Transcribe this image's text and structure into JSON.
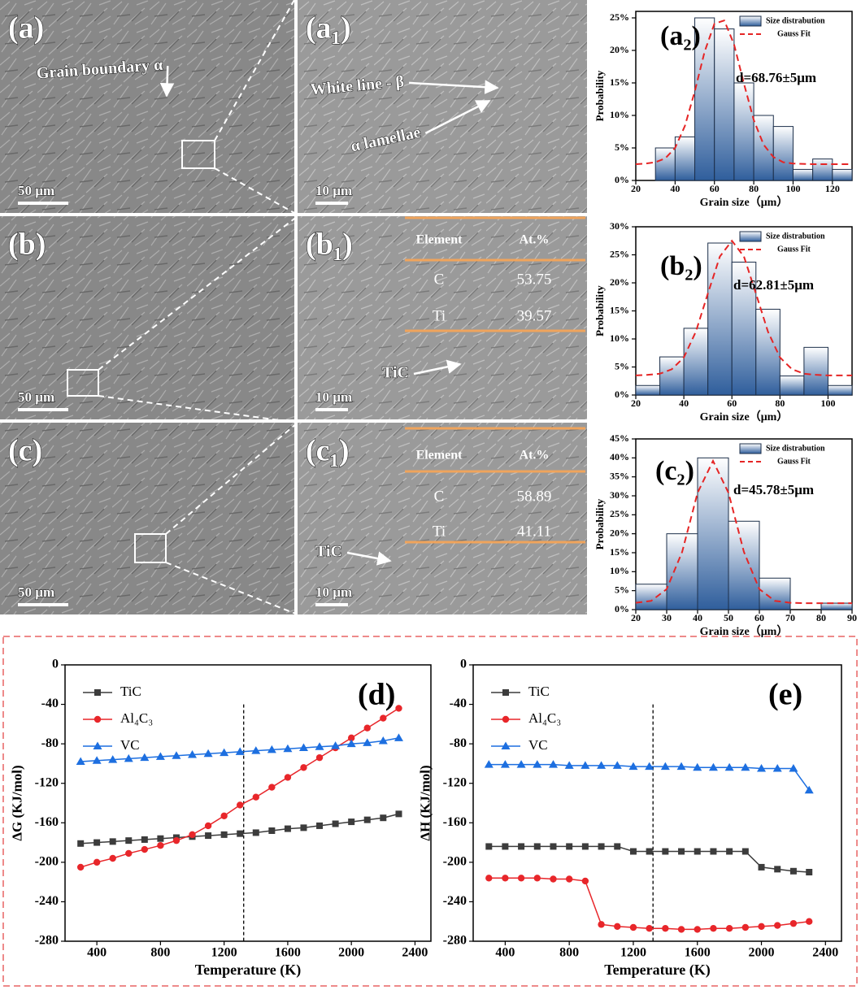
{
  "micrographs": [
    {
      "label": "(a)",
      "scale": "50 µm",
      "annotations": [
        "Grain boundary α"
      ]
    },
    {
      "label": "(a₁)",
      "scale": "10 µm",
      "annotations": [
        "White line - β",
        "α lamellae"
      ]
    },
    {
      "label": "(b)",
      "scale": "50 µm"
    },
    {
      "label": "(b₁)",
      "scale": "10 µm",
      "annotations": [
        "TiC"
      ],
      "table": {
        "header": [
          "Element",
          "At.%"
        ],
        "rows": [
          [
            "C",
            "53.75"
          ],
          [
            "Ti",
            "39.57"
          ]
        ]
      }
    },
    {
      "label": "(c)",
      "scale": "50 µm"
    },
    {
      "label": "(c₁)",
      "scale": "10 µm",
      "annotations": [
        "TiC"
      ],
      "table": {
        "header": [
          "Element",
          "At.%"
        ],
        "rows": [
          [
            "C",
            "58.89"
          ],
          [
            "Ti",
            "41.11"
          ]
        ]
      }
    }
  ],
  "chart_data": [
    {
      "type": "histogram",
      "panel_label": "(a₂)",
      "annotation": "d=68.76±5μm",
      "xlabel": "Grain size（μm）",
      "ylabel": "Probability",
      "bins": [
        30,
        40,
        50,
        60,
        70,
        80,
        90,
        100,
        110,
        120,
        130
      ],
      "series": [
        {
          "name": "Size distrabution",
          "color": "#2f5e9c",
          "values": [
            5,
            6.7,
            25,
            23.3,
            15,
            10,
            8.3,
            1.7,
            3.3,
            1.7
          ]
        },
        {
          "name": "Gauss Fit",
          "color": "#e52525",
          "x": [
            20,
            25,
            30,
            35,
            40,
            45,
            50,
            55,
            60,
            65,
            70,
            75,
            80,
            85,
            90,
            95,
            100,
            110,
            120,
            130
          ],
          "values": [
            2.5,
            2.6,
            2.8,
            3.4,
            5,
            8.4,
            13.7,
            19.8,
            24.1,
            24.6,
            20.9,
            14.9,
            9.3,
            5.5,
            3.6,
            2.8,
            2.6,
            2.5,
            2.5,
            2.5
          ]
        }
      ],
      "xlim": [
        20,
        130
      ],
      "xticks": [
        20,
        40,
        60,
        80,
        100,
        120
      ],
      "ylim": [
        0,
        26
      ],
      "yticks": [
        {
          "value": 0,
          "label": "0%"
        },
        {
          "value": 5,
          "label": "5%"
        },
        {
          "value": 10,
          "label": "10%"
        },
        {
          "value": 15,
          "label": "15%"
        },
        {
          "value": 20,
          "label": "20%"
        },
        {
          "value": 25,
          "label": "25%"
        }
      ]
    },
    {
      "type": "histogram",
      "panel_label": "(b₂)",
      "annotation": "d=62.81±5μm",
      "xlabel": "Grain size（μm）",
      "ylabel": "Probability",
      "bins": [
        20,
        30,
        40,
        50,
        60,
        70,
        80,
        90,
        100,
        110
      ],
      "series": [
        {
          "name": "Size distrabution",
          "color": "#2f5e9c",
          "values": [
            1.7,
            6.8,
            11.9,
            27.1,
            23.7,
            15.3,
            3.4,
            8.5,
            1.7
          ]
        },
        {
          "name": "Gauss Fit",
          "color": "#e52525",
          "x": [
            20,
            25,
            30,
            35,
            40,
            45,
            50,
            55,
            60,
            65,
            70,
            75,
            80,
            85,
            90,
            95,
            100,
            105,
            110
          ],
          "values": [
            3.5,
            3.6,
            3.8,
            4.6,
            6.7,
            11.3,
            18.1,
            24.7,
            27.5,
            24.7,
            18.1,
            11.3,
            6.7,
            4.6,
            3.8,
            3.6,
            3.5,
            3.5,
            3.5
          ]
        }
      ],
      "xlim": [
        20,
        110
      ],
      "xticks": [
        20,
        40,
        60,
        80,
        100
      ],
      "ylim": [
        0,
        30
      ],
      "yticks": [
        {
          "value": 0,
          "label": "0%"
        },
        {
          "value": 5,
          "label": "5%"
        },
        {
          "value": 10,
          "label": "10%"
        },
        {
          "value": 15,
          "label": "15%"
        },
        {
          "value": 20,
          "label": "20%"
        },
        {
          "value": 25,
          "label": "25%"
        },
        {
          "value": 30,
          "label": "30%"
        }
      ]
    },
    {
      "type": "histogram",
      "panel_label": "(c₂)",
      "annotation": "d=45.78±5μm",
      "xlabel": "Grain size（μm）",
      "ylabel": "Probability",
      "bins": [
        20,
        30,
        40,
        50,
        60,
        70,
        80,
        90
      ],
      "series": [
        {
          "name": "Size distrabution",
          "color": "#2f5e9c",
          "values": [
            6.7,
            20,
            40,
            23.3,
            8.3,
            0,
            1.7
          ]
        },
        {
          "name": "Gauss Fit",
          "color": "#e52525",
          "x": [
            20,
            25,
            30,
            35,
            40,
            45,
            50,
            55,
            60,
            65,
            70,
            75,
            80,
            85,
            90
          ],
          "values": [
            1.8,
            2.3,
            5.4,
            15.2,
            30.8,
            39.2,
            30.8,
            15.2,
            5.4,
            2.3,
            1.8,
            1.7,
            1.7,
            1.7,
            1.7
          ]
        }
      ],
      "xlim": [
        20,
        90
      ],
      "xticks": [
        20,
        30,
        40,
        50,
        60,
        70,
        80,
        90
      ],
      "ylim": [
        0,
        45
      ],
      "yticks": [
        {
          "value": 0,
          "label": "0%"
        },
        {
          "value": 5,
          "label": "5%"
        },
        {
          "value": 10,
          "label": "10%"
        },
        {
          "value": 15,
          "label": "15%"
        },
        {
          "value": 20,
          "label": "20%"
        },
        {
          "value": 25,
          "label": "25%"
        },
        {
          "value": 30,
          "label": "30%"
        },
        {
          "value": 35,
          "label": "35%"
        },
        {
          "value": 40,
          "label": "40%"
        },
        {
          "value": 45,
          "label": "45%"
        }
      ]
    },
    {
      "type": "line",
      "panel_label": "(d)",
      "xlabel": "Temperature (K)",
      "ylabel": "ΔG (KJ/mol)",
      "vline": 1323,
      "x": [
        298,
        400,
        500,
        600,
        700,
        800,
        900,
        1000,
        1100,
        1200,
        1300,
        1400,
        1500,
        1600,
        1700,
        1800,
        1900,
        2000,
        2100,
        2200,
        2298
      ],
      "series": [
        {
          "name": "TiC",
          "color": "#3c3c3c",
          "marker": "square",
          "values": [
            -181,
            -180,
            -179,
            -178,
            -177,
            -176,
            -175,
            -174,
            -173,
            -172,
            -171,
            -170,
            -168,
            -166,
            -165,
            -163,
            -161,
            -159,
            -157,
            -155,
            -151
          ]
        },
        {
          "name": "Al₄C₃",
          "color": "#e8262a",
          "marker": "circle",
          "values": [
            -205,
            -200,
            -196,
            -191,
            -187,
            -183,
            -178,
            -172,
            -163,
            -153,
            -142,
            -134,
            -124,
            -114,
            -104,
            -94,
            -84,
            -74,
            -64,
            -54,
            -44
          ]
        },
        {
          "name": "VC",
          "color": "#1d6fe0",
          "marker": "triangle",
          "values": [
            -98,
            -97,
            -96,
            -95,
            -94,
            -93,
            -92,
            -91,
            -90,
            -89,
            -88,
            -87,
            -86,
            -85,
            -84,
            -83,
            -82,
            -80,
            -79,
            -77,
            -74
          ]
        }
      ],
      "xlim": [
        200,
        2500
      ],
      "xticks": [
        400,
        800,
        1200,
        1600,
        2000,
        2400
      ],
      "ylim": [
        -280,
        0
      ],
      "yticks": [
        -280,
        -240,
        -200,
        -160,
        -120,
        -80,
        -40,
        0
      ]
    },
    {
      "type": "line",
      "panel_label": "(e)",
      "xlabel": "Temperature (K)",
      "ylabel": "ΔH (KJ/mol)",
      "vline": 1323,
      "x": [
        298,
        400,
        500,
        600,
        700,
        800,
        900,
        1000,
        1100,
        1200,
        1300,
        1400,
        1500,
        1600,
        1700,
        1800,
        1900,
        2000,
        2100,
        2200,
        2298
      ],
      "series": [
        {
          "name": "TiC",
          "color": "#3c3c3c",
          "marker": "square",
          "values": [
            -184,
            -184,
            -184,
            -184,
            -184,
            -184,
            -184,
            -184,
            -184,
            -189,
            -189,
            -189,
            -189,
            -189,
            -189,
            -189,
            -189,
            -205,
            -207,
            -209,
            -210
          ]
        },
        {
          "name": "Al₄C₃",
          "color": "#e8262a",
          "marker": "circle",
          "values": [
            -216,
            -216,
            -216,
            -216,
            -217,
            -217,
            -219,
            -263,
            -265,
            -266,
            -267,
            -267,
            -268,
            -268,
            -267,
            -267,
            -266,
            -265,
            -264,
            -262,
            -260
          ]
        },
        {
          "name": "VC",
          "color": "#1d6fe0",
          "marker": "triangle",
          "values": [
            -101,
            -101,
            -101,
            -101,
            -101,
            -102,
            -102,
            -102,
            -102,
            -103,
            -103,
            -103,
            -103,
            -104,
            -104,
            -104,
            -104,
            -105,
            -105,
            -105,
            -127
          ]
        }
      ],
      "xlim": [
        200,
        2500
      ],
      "xticks": [
        400,
        800,
        1200,
        1600,
        2000,
        2400
      ],
      "ylim": [
        -280,
        0
      ],
      "yticks": [
        -280,
        -240,
        -200,
        -160,
        -120,
        -80,
        -40,
        0
      ]
    }
  ]
}
